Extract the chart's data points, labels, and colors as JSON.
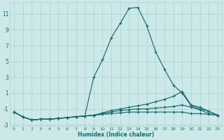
{
  "xlabel": "Humidex (Indice chaleur)",
  "bg_color": "#cce8e8",
  "line_color": "#1a6b6b",
  "grid_color": "#b0d4d4",
  "series": [
    {
      "x": [
        0,
        1,
        2,
        3,
        4,
        5,
        6,
        7,
        8,
        9,
        10,
        11,
        12,
        13,
        14,
        15,
        16,
        17,
        18,
        19,
        20,
        21,
        22,
        23
      ],
      "y": [
        -1.4,
        -2.0,
        -2.4,
        -2.3,
        -2.3,
        -2.2,
        -2.1,
        -2.0,
        -1.9,
        3.0,
        5.2,
        8.0,
        9.8,
        11.7,
        11.8,
        9.5,
        6.2,
        4.0,
        2.0,
        1.0,
        -0.6,
        -1.0,
        -1.3,
        -1.8
      ]
    },
    {
      "x": [
        0,
        1,
        2,
        3,
        4,
        5,
        6,
        7,
        8,
        9,
        10,
        11,
        12,
        13,
        14,
        15,
        16,
        17,
        18,
        19,
        20,
        21,
        22,
        23
      ],
      "y": [
        -1.4,
        -2.0,
        -2.4,
        -2.3,
        -2.3,
        -2.2,
        -2.1,
        -2.0,
        -1.9,
        -1.8,
        -1.5,
        -1.2,
        -1.0,
        -0.8,
        -0.6,
        -0.4,
        -0.1,
        0.2,
        0.6,
        1.2,
        -0.5,
        -0.8,
        -1.3,
        -1.8
      ]
    },
    {
      "x": [
        0,
        1,
        2,
        3,
        4,
        5,
        6,
        7,
        8,
        9,
        10,
        11,
        12,
        13,
        14,
        15,
        16,
        17,
        18,
        19,
        20,
        21,
        22,
        23
      ],
      "y": [
        -1.4,
        -2.0,
        -2.4,
        -2.3,
        -2.3,
        -2.2,
        -2.1,
        -2.0,
        -1.9,
        -1.8,
        -1.6,
        -1.4,
        -1.2,
        -1.1,
        -1.0,
        -1.0,
        -0.9,
        -0.8,
        -0.7,
        -0.5,
        -0.8,
        -1.1,
        -1.6,
        -1.8
      ]
    },
    {
      "x": [
        0,
        1,
        2,
        3,
        4,
        5,
        6,
        7,
        8,
        9,
        10,
        11,
        12,
        13,
        14,
        15,
        16,
        17,
        18,
        19,
        20,
        21,
        22,
        23
      ],
      "y": [
        -1.4,
        -2.0,
        -2.4,
        -2.3,
        -2.3,
        -2.2,
        -2.1,
        -2.0,
        -1.9,
        -1.8,
        -1.7,
        -1.6,
        -1.5,
        -1.4,
        -1.4,
        -1.4,
        -1.4,
        -1.4,
        -1.4,
        -1.4,
        -1.6,
        -1.6,
        -1.7,
        -1.8
      ]
    }
  ],
  "xlim": [
    -0.5,
    23.5
  ],
  "ylim": [
    -3.2,
    12.5
  ],
  "yticks": [
    -3,
    -1,
    1,
    3,
    5,
    7,
    9,
    11
  ],
  "xticks": [
    0,
    1,
    2,
    3,
    4,
    5,
    6,
    7,
    8,
    9,
    10,
    11,
    12,
    13,
    14,
    15,
    16,
    17,
    18,
    19,
    20,
    21,
    22,
    23
  ]
}
